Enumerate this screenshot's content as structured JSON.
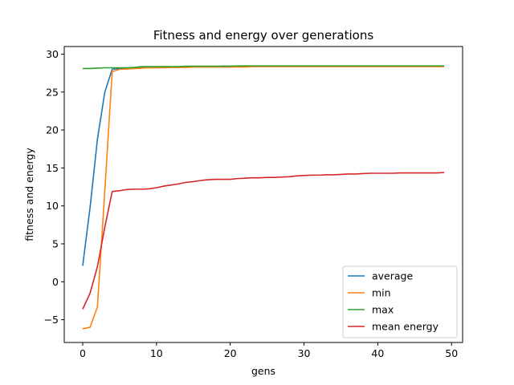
{
  "chart_data": {
    "type": "line",
    "title": "Fitness and energy over generations",
    "xlabel": "gens",
    "ylabel": "fitness and energy",
    "xlim": [
      -2.5,
      51.5
    ],
    "ylim": [
      -8,
      31
    ],
    "xticks": [
      0,
      10,
      20,
      30,
      40,
      50
    ],
    "yticks": [
      -5,
      0,
      5,
      10,
      15,
      20,
      25,
      30
    ],
    "grid": false,
    "legend_position": "lower-right",
    "x": [
      0,
      1,
      2,
      3,
      4,
      5,
      6,
      7,
      8,
      9,
      10,
      11,
      12,
      13,
      14,
      15,
      16,
      17,
      18,
      19,
      20,
      21,
      22,
      23,
      24,
      25,
      26,
      27,
      28,
      29,
      30,
      31,
      32,
      33,
      34,
      35,
      36,
      37,
      38,
      39,
      40,
      41,
      42,
      43,
      44,
      45,
      46,
      47,
      48,
      49
    ],
    "series": [
      {
        "name": "average",
        "color": "#1f77b4",
        "values": [
          2.1,
          9.8,
          18.8,
          25.0,
          28.0,
          28.1,
          28.15,
          28.2,
          28.25,
          28.25,
          28.3,
          28.3,
          28.3,
          28.3,
          28.35,
          28.35,
          28.35,
          28.35,
          28.35,
          28.4,
          28.4,
          28.4,
          28.4,
          28.4,
          28.4,
          28.4,
          28.4,
          28.4,
          28.4,
          28.4,
          28.4,
          28.4,
          28.4,
          28.4,
          28.4,
          28.4,
          28.4,
          28.4,
          28.4,
          28.4,
          28.4,
          28.4,
          28.4,
          28.4,
          28.4,
          28.4,
          28.4,
          28.4,
          28.4,
          28.4
        ]
      },
      {
        "name": "min",
        "color": "#ff7f0e",
        "values": [
          -6.2,
          -6.0,
          -3.3,
          12.0,
          27.7,
          28.0,
          28.05,
          28.1,
          28.15,
          28.2,
          28.2,
          28.2,
          28.25,
          28.25,
          28.25,
          28.3,
          28.3,
          28.3,
          28.3,
          28.3,
          28.3,
          28.3,
          28.3,
          28.35,
          28.35,
          28.35,
          28.35,
          28.35,
          28.35,
          28.35,
          28.35,
          28.35,
          28.35,
          28.35,
          28.35,
          28.35,
          28.35,
          28.35,
          28.35,
          28.35,
          28.35,
          28.35,
          28.35,
          28.35,
          28.35,
          28.35,
          28.35,
          28.35,
          28.35,
          28.35
        ]
      },
      {
        "name": "max",
        "color": "#2ca02c",
        "values": [
          28.1,
          28.1,
          28.15,
          28.2,
          28.2,
          28.2,
          28.2,
          28.25,
          28.35,
          28.35,
          28.35,
          28.35,
          28.35,
          28.35,
          28.4,
          28.4,
          28.4,
          28.4,
          28.4,
          28.4,
          28.4,
          28.45,
          28.45,
          28.45,
          28.45,
          28.45,
          28.45,
          28.45,
          28.45,
          28.45,
          28.45,
          28.45,
          28.45,
          28.45,
          28.45,
          28.45,
          28.45,
          28.45,
          28.45,
          28.45,
          28.45,
          28.45,
          28.45,
          28.45,
          28.45,
          28.45,
          28.45,
          28.45,
          28.45,
          28.45
        ]
      },
      {
        "name": "mean energy",
        "color": "#d62728",
        "values": [
          -3.6,
          -1.5,
          2.0,
          7.2,
          11.9,
          12.0,
          12.15,
          12.2,
          12.2,
          12.25,
          12.4,
          12.6,
          12.75,
          12.9,
          13.1,
          13.2,
          13.35,
          13.45,
          13.5,
          13.5,
          13.5,
          13.6,
          13.65,
          13.7,
          13.7,
          13.75,
          13.75,
          13.8,
          13.85,
          13.95,
          14.0,
          14.05,
          14.05,
          14.1,
          14.1,
          14.15,
          14.2,
          14.2,
          14.25,
          14.3,
          14.3,
          14.3,
          14.3,
          14.35,
          14.35,
          14.35,
          14.35,
          14.35,
          14.35,
          14.4
        ]
      }
    ]
  }
}
